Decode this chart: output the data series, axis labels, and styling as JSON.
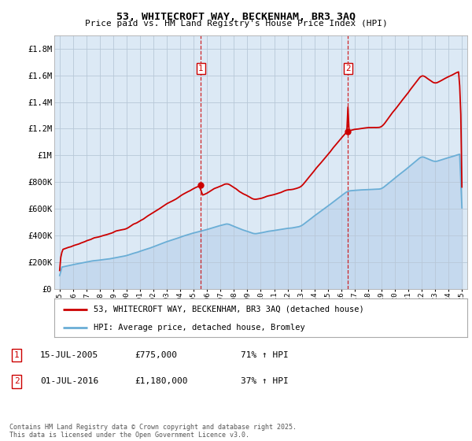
{
  "title": "53, WHITECROFT WAY, BECKENHAM, BR3 3AQ",
  "subtitle": "Price paid vs. HM Land Registry's House Price Index (HPI)",
  "plot_bg_color": "#dce9f5",
  "outer_bg_color": "#ffffff",
  "red_color": "#cc0000",
  "blue_color": "#6aaed6",
  "blue_fill_color": "#c5d9ee",
  "ylim": [
    0,
    1900000
  ],
  "yticks": [
    0,
    200000,
    400000,
    600000,
    800000,
    1000000,
    1200000,
    1400000,
    1600000,
    1800000
  ],
  "ytick_labels": [
    "£0",
    "£200K",
    "£400K",
    "£600K",
    "£800K",
    "£1M",
    "£1.2M",
    "£1.4M",
    "£1.6M",
    "£1.8M"
  ],
  "marker1_year": 2005.54,
  "marker1_label": "1",
  "marker1_date": "15-JUL-2005",
  "marker1_price": "£775,000",
  "marker1_hpi": "71% ↑ HPI",
  "marker1_value": 775000,
  "marker2_year": 2016.5,
  "marker2_label": "2",
  "marker2_date": "01-JUL-2016",
  "marker2_price": "£1,180,000",
  "marker2_hpi": "37% ↑ HPI",
  "marker2_value": 1180000,
  "legend_line1": "53, WHITECROFT WAY, BECKENHAM, BR3 3AQ (detached house)",
  "legend_line2": "HPI: Average price, detached house, Bromley",
  "footer": "Contains HM Land Registry data © Crown copyright and database right 2025.\nThis data is licensed under the Open Government Licence v3.0."
}
